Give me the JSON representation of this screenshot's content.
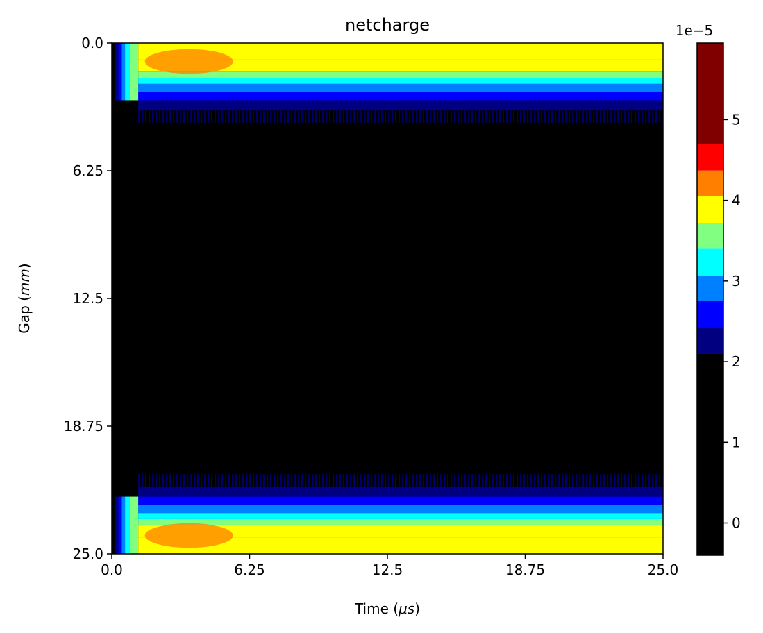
{
  "chart_data": {
    "type": "heatmap",
    "title": "netcharge",
    "xlabel_prefix": "Time (",
    "xlabel_unit": "μs",
    "xlabel_suffix": ")",
    "ylabel_prefix": "Gap (",
    "ylabel_unit": "mm",
    "ylabel_suffix": ")",
    "xlim": [
      0.0,
      25.0
    ],
    "ylim": [
      25.0,
      0.0
    ],
    "y_inverted": true,
    "xticks": [
      0.0,
      6.25,
      12.5,
      18.75,
      25.0
    ],
    "xtick_labels": [
      "0.0",
      "6.25",
      "12.5",
      "18.75",
      "25.0"
    ],
    "yticks": [
      0.0,
      6.25,
      12.5,
      18.75,
      25.0
    ],
    "ytick_labels": [
      "0.0",
      "6.25",
      "12.5",
      "18.75",
      "25.0"
    ],
    "grid": false,
    "colorbar": {
      "location": "right",
      "offset_label": "1e−5",
      "range": [
        -0.4,
        5.95
      ],
      "ticks": [
        0,
        1,
        2,
        3,
        4,
        5
      ],
      "tick_labels": [
        "0",
        "1",
        "2",
        "3",
        "4",
        "5"
      ],
      "bands": [
        {
          "from": -0.4,
          "to": 2.1,
          "color": "#000000"
        },
        {
          "from": 2.1,
          "to": 2.42,
          "color": "#000080"
        },
        {
          "from": 2.42,
          "to": 2.75,
          "color": "#0000ff"
        },
        {
          "from": 2.75,
          "to": 3.07,
          "color": "#0080ff"
        },
        {
          "from": 3.07,
          "to": 3.4,
          "color": "#00ffff"
        },
        {
          "from": 3.4,
          "to": 3.72,
          "color": "#80ff80"
        },
        {
          "from": 3.72,
          "to": 4.05,
          "color": "#ffff00"
        },
        {
          "from": 4.05,
          "to": 4.37,
          "color": "#ff8000"
        },
        {
          "from": 4.37,
          "to": 4.7,
          "color": "#ff0000"
        },
        {
          "from": 4.7,
          "to": 5.95,
          "color": "#800000"
        }
      ]
    },
    "field_profile": {
      "transition_time": [
        0.3,
        0.45,
        0.6,
        0.8,
        1.2
      ],
      "transition_colors": [
        "#000080",
        "#0000ff",
        "#0080ff",
        "#00ffff",
        "#80ff80"
      ],
      "wall_layers_gap": [
        {
          "from": 0.0,
          "to": 0.8,
          "color": "#ffff00"
        },
        {
          "from": 0.8,
          "to": 1.4,
          "color": "#ffff00"
        },
        {
          "from": 1.4,
          "to": 1.7,
          "color": "#80ff80"
        },
        {
          "from": 1.7,
          "to": 2.0,
          "color": "#00ffff"
        },
        {
          "from": 2.0,
          "to": 2.4,
          "color": "#0080ff"
        },
        {
          "from": 2.4,
          "to": 2.8,
          "color": "#0000ff"
        },
        {
          "from": 2.8,
          "to": 3.3,
          "color": "#000080"
        }
      ],
      "peak_region": {
        "time": [
          1.5,
          5.5
        ],
        "gap": [
          0.3,
          1.5
        ],
        "color": "#ff8000"
      }
    }
  }
}
